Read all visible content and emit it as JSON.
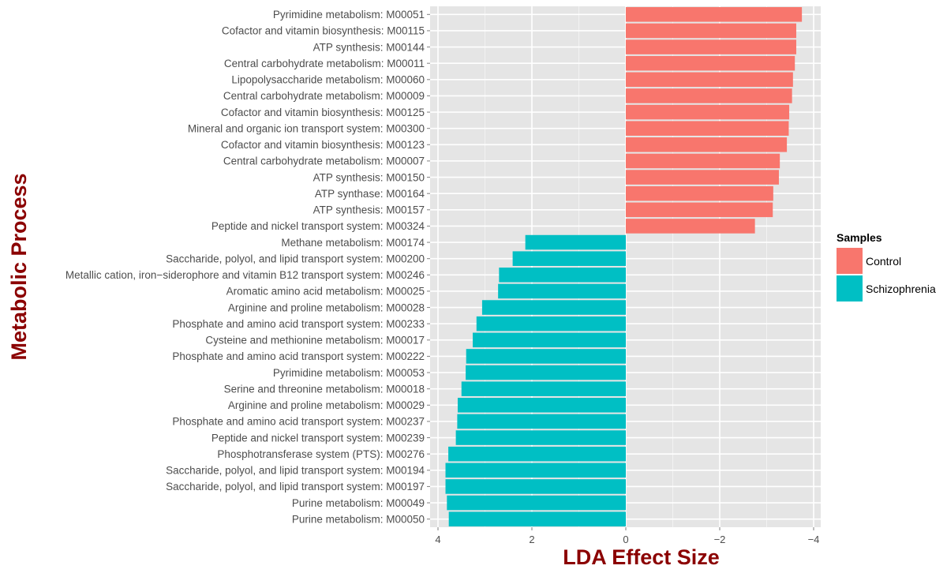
{
  "chart_data": {
    "type": "bar",
    "orientation": "horizontal",
    "xlabel": "LDA Effect Size",
    "ylabel": "Metabolic Process",
    "xlim": [
      4.1,
      -4.1
    ],
    "x_reversed": true,
    "xticks": [
      4,
      2,
      0,
      -2,
      -4
    ],
    "xtick_labels": [
      "4",
      "2",
      "0",
      "−2",
      "−4"
    ],
    "grid": true,
    "legend": {
      "title": "Samples",
      "position": "right",
      "entries": [
        {
          "name": "Control",
          "color": "#F8766D"
        },
        {
          "name": "Schizophrenia",
          "color": "#00BFC4"
        }
      ]
    },
    "colors": {
      "Control": "#F8766D",
      "Schizophrenia": "#00BFC4",
      "panel": "#E5E5E5",
      "grid": "#FFFFFF",
      "title": "#8B0000"
    },
    "bars": [
      {
        "label": "Pyrimidine metabolism: M00051",
        "value": -3.75,
        "group": "Control"
      },
      {
        "label": "Cofactor and vitamin biosynthesis: M00115",
        "value": -3.63,
        "group": "Control"
      },
      {
        "label": "ATP synthesis: M00144",
        "value": -3.63,
        "group": "Control"
      },
      {
        "label": "Central carbohydrate metabolism: M00011",
        "value": -3.6,
        "group": "Control"
      },
      {
        "label": "Lipopolysaccharide metabolism: M00060",
        "value": -3.56,
        "group": "Control"
      },
      {
        "label": "Central carbohydrate metabolism: M00009",
        "value": -3.54,
        "group": "Control"
      },
      {
        "label": "Cofactor and vitamin biosynthesis: M00125",
        "value": -3.48,
        "group": "Control"
      },
      {
        "label": "Mineral and organic ion transport system: M00300",
        "value": -3.47,
        "group": "Control"
      },
      {
        "label": "Cofactor and vitamin biosynthesis: M00123",
        "value": -3.43,
        "group": "Control"
      },
      {
        "label": "Central carbohydrate metabolism: M00007",
        "value": -3.28,
        "group": "Control"
      },
      {
        "label": "ATP synthesis: M00150",
        "value": -3.26,
        "group": "Control"
      },
      {
        "label": "ATP synthase: M00164",
        "value": -3.14,
        "group": "Control"
      },
      {
        "label": "ATP synthesis: M00157",
        "value": -3.13,
        "group": "Control"
      },
      {
        "label": "Peptide and nickel transport system: M00324",
        "value": -2.75,
        "group": "Control"
      },
      {
        "label": "Methane metabolism: M00174",
        "value": 2.14,
        "group": "Schizophrenia"
      },
      {
        "label": "Saccharide, polyol, and lipid transport system: M00200",
        "value": 2.41,
        "group": "Schizophrenia"
      },
      {
        "label": "Metallic cation, iron−siderophore and vitamin B12 transport system: M00246",
        "value": 2.7,
        "group": "Schizophrenia"
      },
      {
        "label": "Aromatic amino acid metabolism: M00025",
        "value": 2.72,
        "group": "Schizophrenia"
      },
      {
        "label": "Arginine and proline metabolism: M00028",
        "value": 3.06,
        "group": "Schizophrenia"
      },
      {
        "label": "Phosphate and amino acid transport system: M00233",
        "value": 3.18,
        "group": "Schizophrenia"
      },
      {
        "label": "Cysteine and methionine metabolism: M00017",
        "value": 3.26,
        "group": "Schizophrenia"
      },
      {
        "label": "Phosphate and amino acid transport system: M00222",
        "value": 3.4,
        "group": "Schizophrenia"
      },
      {
        "label": "Pyrimidine metabolism: M00053",
        "value": 3.41,
        "group": "Schizophrenia"
      },
      {
        "label": "Serine and threonine metabolism: M00018",
        "value": 3.5,
        "group": "Schizophrenia"
      },
      {
        "label": "Arginine and proline metabolism: M00029",
        "value": 3.58,
        "group": "Schizophrenia"
      },
      {
        "label": "Phosphate and amino acid transport system: M00237",
        "value": 3.59,
        "group": "Schizophrenia"
      },
      {
        "label": "Peptide and nickel transport system: M00239",
        "value": 3.62,
        "group": "Schizophrenia"
      },
      {
        "label": "Phosphotransferase system (PTS): M00276",
        "value": 3.78,
        "group": "Schizophrenia"
      },
      {
        "label": "Saccharide, polyol, and lipid transport system: M00194",
        "value": 3.84,
        "group": "Schizophrenia"
      },
      {
        "label": "Saccharide, polyol, and lipid transport system: M00197",
        "value": 3.84,
        "group": "Schizophrenia"
      },
      {
        "label": "Purine metabolism: M00049",
        "value": 3.81,
        "group": "Schizophrenia"
      },
      {
        "label": "Purine metabolism: M00050",
        "value": 3.77,
        "group": "Schizophrenia"
      }
    ]
  }
}
